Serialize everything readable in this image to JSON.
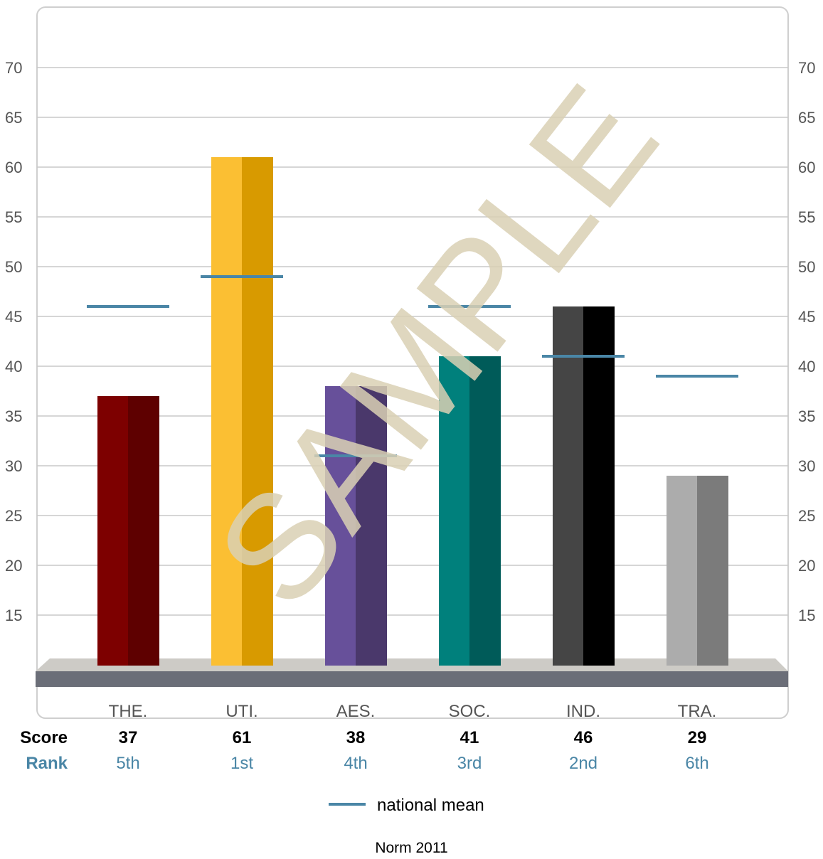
{
  "chart_data": {
    "type": "bar",
    "categories": [
      "THE.",
      "UTI.",
      "AES.",
      "SOC.",
      "IND.",
      "TRA."
    ],
    "values": [
      37,
      61,
      38,
      41,
      46,
      29
    ],
    "national_mean": [
      46,
      49,
      31,
      46,
      41,
      39
    ],
    "ranks": [
      "5th",
      "1st",
      "4th",
      "3rd",
      "2nd",
      "6th"
    ],
    "colors": [
      [
        "#7d0000",
        "#5e0000"
      ],
      [
        "#fbbf33",
        "#d89a00"
      ],
      [
        "#67509a",
        "#4a386b"
      ],
      [
        "#00807c",
        "#005b59"
      ],
      [
        "#454545",
        "#000000"
      ],
      [
        "#acacac",
        "#7b7b7b"
      ]
    ],
    "yticks": [
      15,
      20,
      25,
      30,
      35,
      40,
      45,
      50,
      55,
      60,
      65,
      70
    ],
    "grid": true,
    "mean_color": "#4a86a6",
    "watermark": "SAMPLE"
  },
  "labels": {
    "score": "Score",
    "rank": "Rank",
    "legend": "national mean",
    "footer": "Norm 2011"
  }
}
